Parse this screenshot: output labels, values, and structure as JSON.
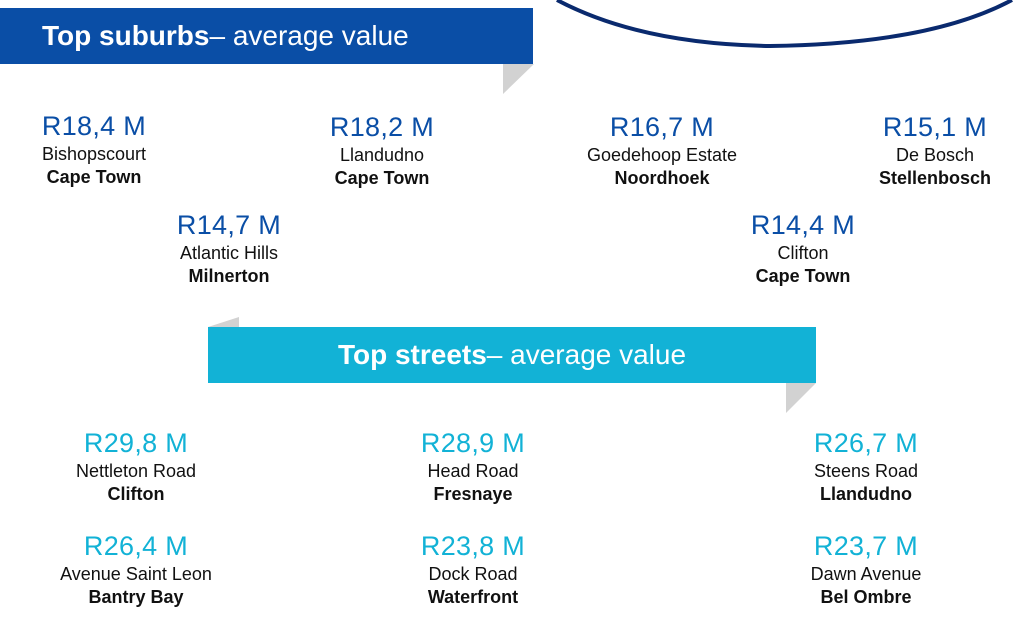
{
  "suburbs": {
    "title_bold": "Top suburbs",
    "title_rest": " – average value",
    "items": [
      {
        "value": "R18,4 M",
        "name": "Bishopscourt",
        "city": "Cape Town"
      },
      {
        "value": "R18,2 M",
        "name": "Llandudno",
        "city": "Cape Town"
      },
      {
        "value": "R16,7 M",
        "name": "Goedehoop Estate",
        "city": "Noordhoek"
      },
      {
        "value": "R15,1 M",
        "name": "De Bosch",
        "city": "Stellenbosch"
      },
      {
        "value": "R14,7 M",
        "name": "Atlantic Hills",
        "city": "Milnerton"
      },
      {
        "value": "R14,4 M",
        "name": "Clifton",
        "city": "Cape Town"
      }
    ]
  },
  "streets": {
    "title_bold": "Top streets",
    "title_rest": " – average value",
    "items": [
      {
        "value": "R29,8 M",
        "name": "Nettleton Road",
        "city": "Clifton"
      },
      {
        "value": "R28,9 M",
        "name": "Head Road",
        "city": "Fresnaye"
      },
      {
        "value": "R26,7 M",
        "name": "Steens Road",
        "city": "Llandudno"
      },
      {
        "value": "R26,4 M",
        "name": "Avenue Saint Leon",
        "city": "Bantry Bay"
      },
      {
        "value": "R23,8 M",
        "name": "Dock Road",
        "city": "Waterfront"
      },
      {
        "value": "R23,7 M",
        "name": "Dawn Avenue",
        "city": "Bel Ombre"
      }
    ]
  },
  "colors": {
    "suburb_accent": "#0a4ea6",
    "street_accent": "#12b2d6",
    "arc": "#0a2a6e"
  }
}
